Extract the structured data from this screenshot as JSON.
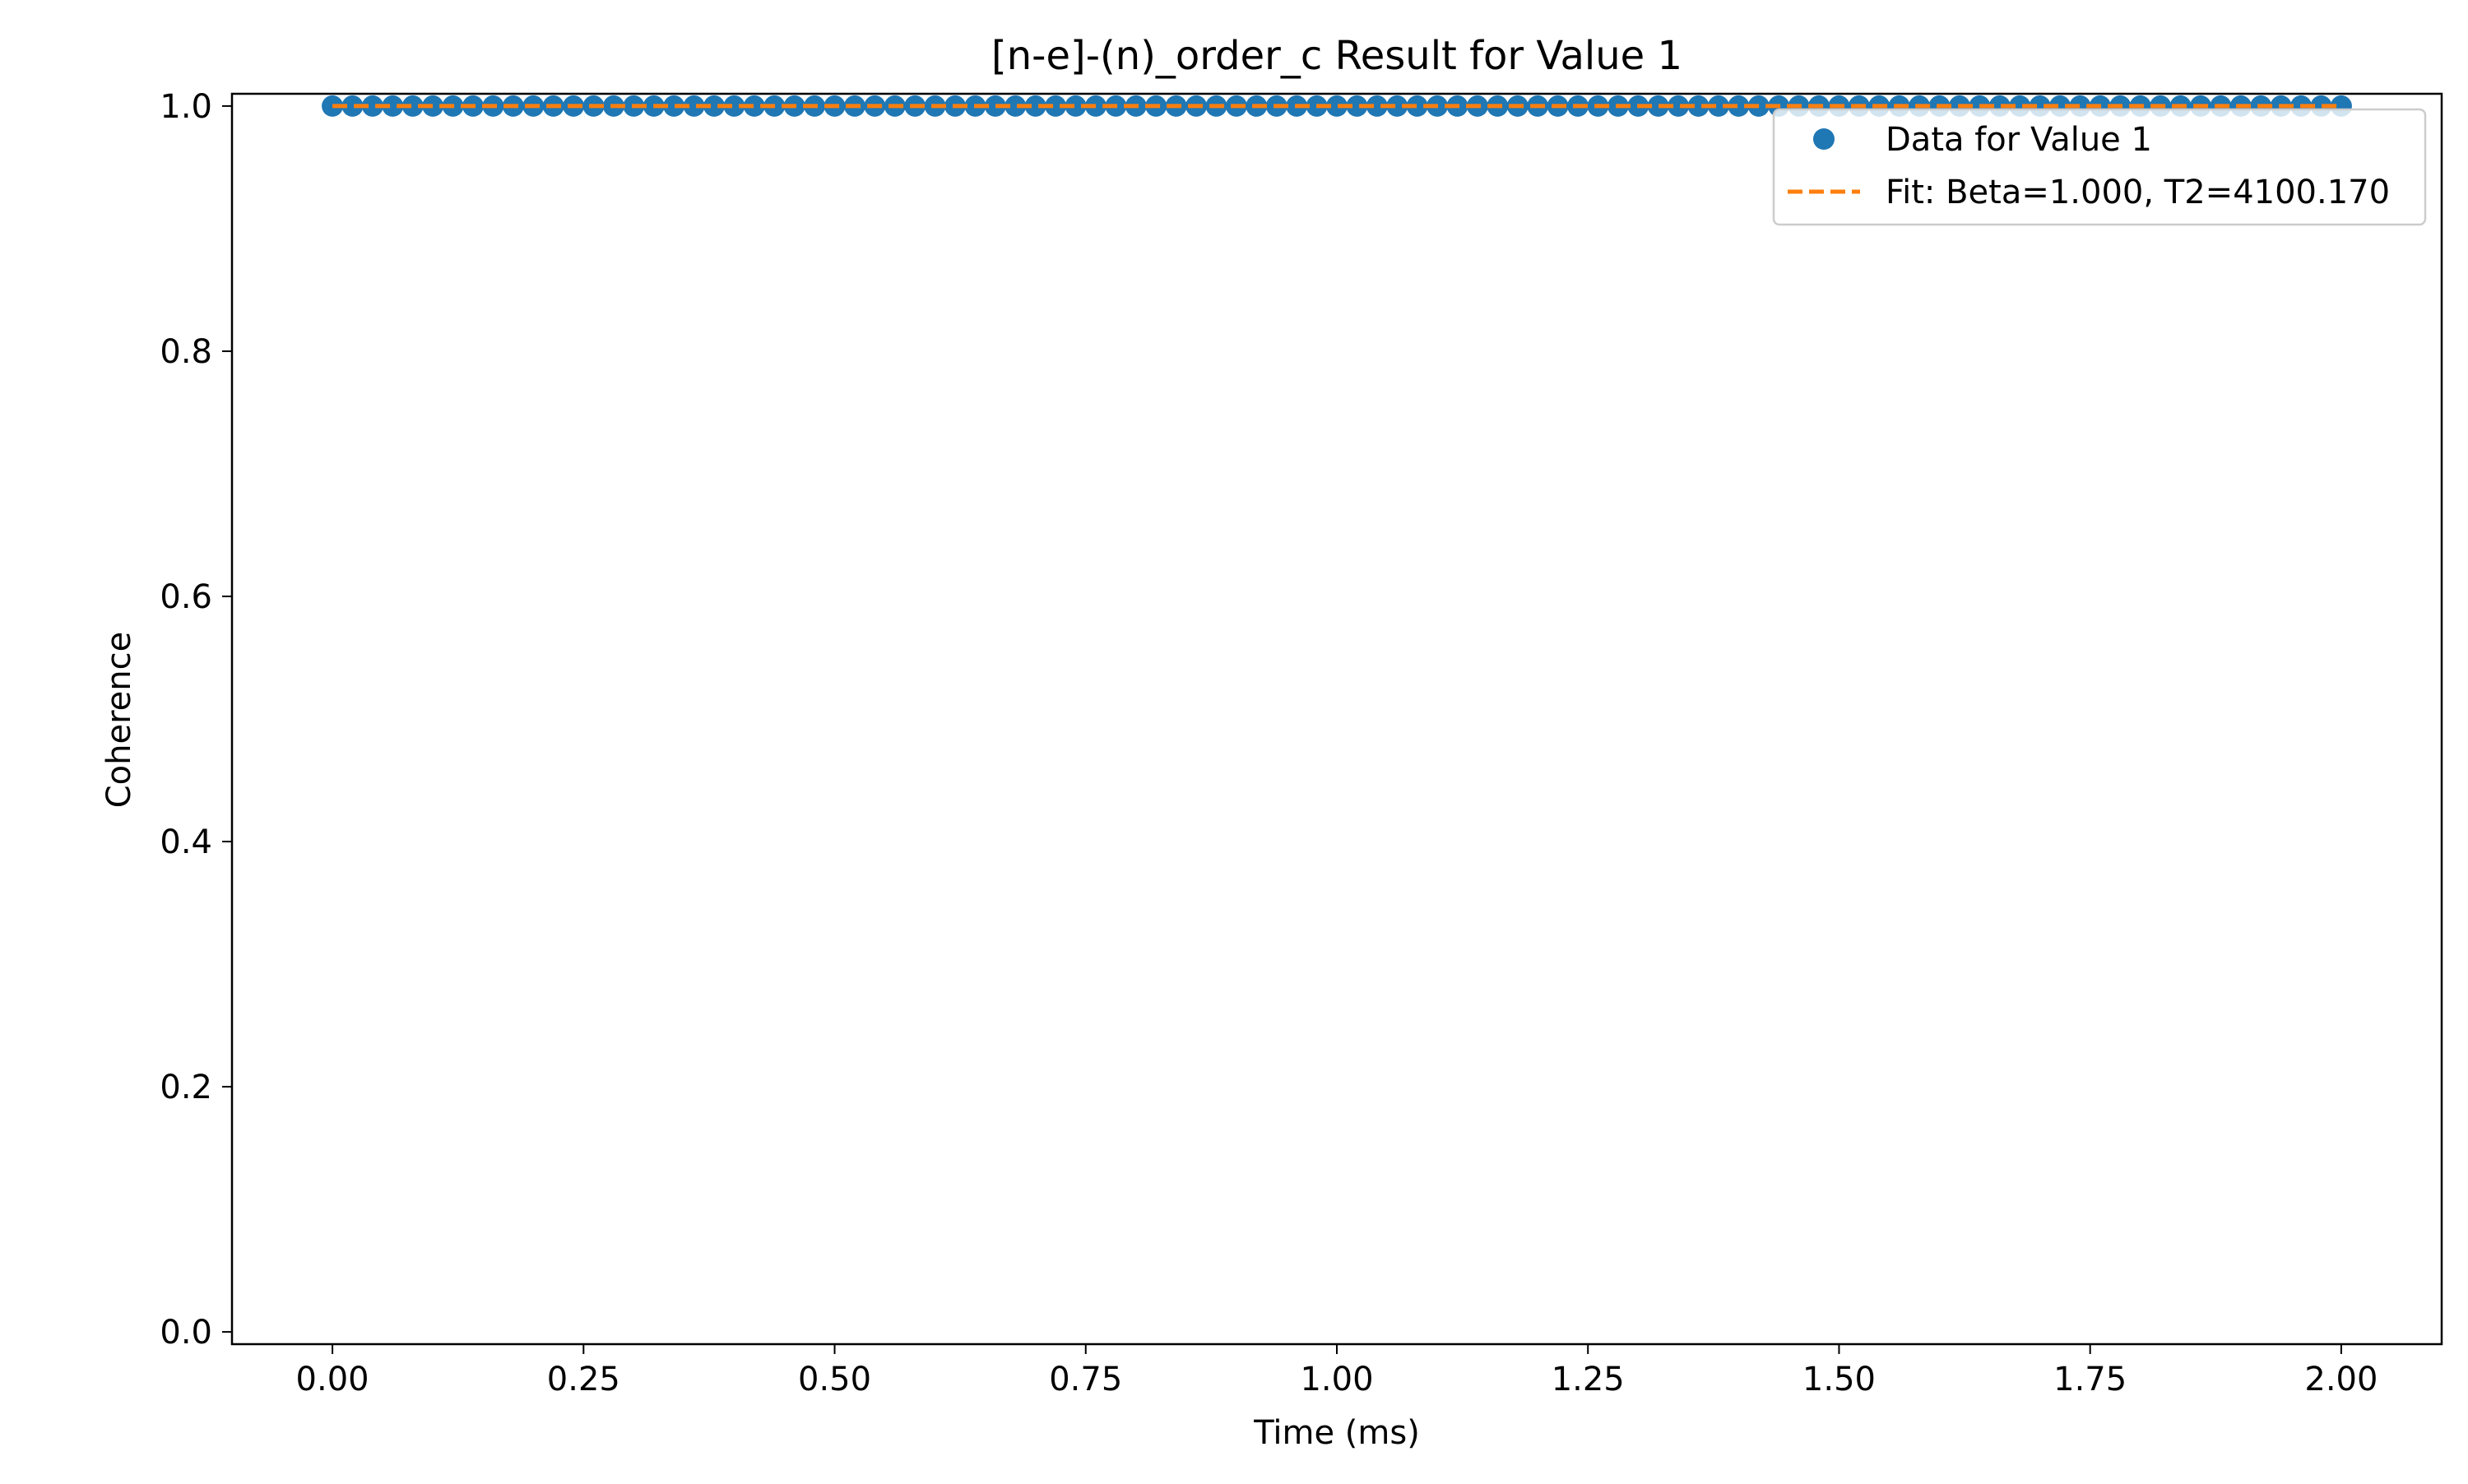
{
  "chart_data": {
    "type": "scatter",
    "title": "[n-e]-(n)_order_c Result for Value 1",
    "xlabel": "Time (ms)",
    "ylabel": "Coherence",
    "xlim": [
      -0.1,
      2.1
    ],
    "ylim": [
      -0.01,
      1.01
    ],
    "x_ticks": [
      "0.00",
      "0.25",
      "0.50",
      "0.75",
      "1.00",
      "1.25",
      "1.50",
      "1.75",
      "2.00"
    ],
    "y_ticks": [
      "0.0",
      "0.2",
      "0.4",
      "0.6",
      "0.8",
      "1.0"
    ],
    "grid": false,
    "legend_position": "top-right",
    "series": [
      {
        "name": "Data for Value 1",
        "kind": "markers",
        "color": "#1f77b4",
        "x_start": 0.0,
        "x_end": 2.0,
        "num_points": 101,
        "y_constant": 1.0
      },
      {
        "name": "Fit: Beta=1.000, T2=4100.170",
        "kind": "dashed-line",
        "color": "#ff7f0e",
        "x": [
          0.0,
          2.0
        ],
        "y": [
          1.0,
          1.0
        ]
      }
    ]
  }
}
